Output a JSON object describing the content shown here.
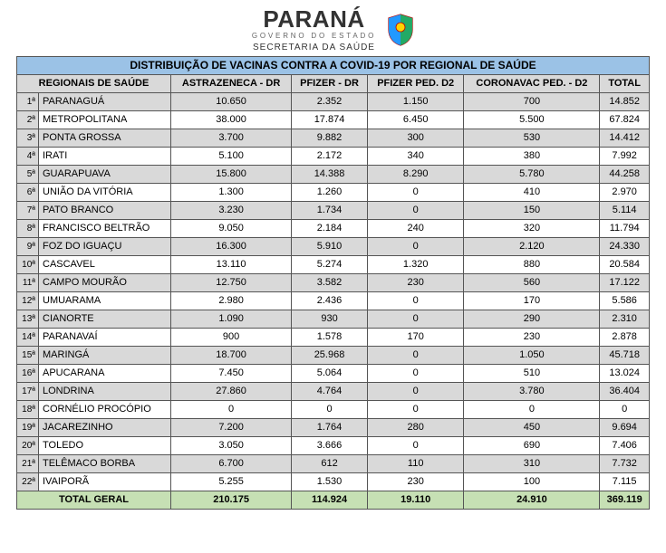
{
  "header": {
    "brand_main": "PARANÁ",
    "brand_sub": "GOVERNO DO ESTADO",
    "brand_sec": "SECRETARIA DA SAÚDE"
  },
  "table": {
    "title": "DISTRIBUIÇÃO DE VACINAS CONTRA A COVID-19 POR REGIONAL DE SAÚDE",
    "columns": [
      "REGIONAIS DE SAÚDE",
      "ASTRAZENECA - DR",
      "PFIZER - DR",
      "PFIZER PED. D2",
      "CORONAVAC PED. - D2",
      "TOTAL"
    ],
    "rows": [
      {
        "idx": "1ª",
        "reg": "PARANAGUÁ",
        "v": [
          "10.650",
          "2.352",
          "1.150",
          "700",
          "14.852"
        ]
      },
      {
        "idx": "2ª",
        "reg": "METROPOLITANA",
        "v": [
          "38.000",
          "17.874",
          "6.450",
          "5.500",
          "67.824"
        ]
      },
      {
        "idx": "3ª",
        "reg": "PONTA GROSSA",
        "v": [
          "3.700",
          "9.882",
          "300",
          "530",
          "14.412"
        ]
      },
      {
        "idx": "4ª",
        "reg": "IRATI",
        "v": [
          "5.100",
          "2.172",
          "340",
          "380",
          "7.992"
        ]
      },
      {
        "idx": "5ª",
        "reg": "GUARAPUAVA",
        "v": [
          "15.800",
          "14.388",
          "8.290",
          "5.780",
          "44.258"
        ]
      },
      {
        "idx": "6ª",
        "reg": "UNIÃO DA VITÓRIA",
        "v": [
          "1.300",
          "1.260",
          "0",
          "410",
          "2.970"
        ]
      },
      {
        "idx": "7ª",
        "reg": "PATO BRANCO",
        "v": [
          "3.230",
          "1.734",
          "0",
          "150",
          "5.114"
        ]
      },
      {
        "idx": "8ª",
        "reg": "FRANCISCO BELTRÃO",
        "v": [
          "9.050",
          "2.184",
          "240",
          "320",
          "11.794"
        ]
      },
      {
        "idx": "9ª",
        "reg": "FOZ DO IGUAÇU",
        "v": [
          "16.300",
          "5.910",
          "0",
          "2.120",
          "24.330"
        ]
      },
      {
        "idx": "10ª",
        "reg": "CASCAVEL",
        "v": [
          "13.110",
          "5.274",
          "1.320",
          "880",
          "20.584"
        ]
      },
      {
        "idx": "11ª",
        "reg": "CAMPO MOURÃO",
        "v": [
          "12.750",
          "3.582",
          "230",
          "560",
          "17.122"
        ]
      },
      {
        "idx": "12ª",
        "reg": "UMUARAMA",
        "v": [
          "2.980",
          "2.436",
          "0",
          "170",
          "5.586"
        ]
      },
      {
        "idx": "13ª",
        "reg": "CIANORTE",
        "v": [
          "1.090",
          "930",
          "0",
          "290",
          "2.310"
        ]
      },
      {
        "idx": "14ª",
        "reg": "PARANAVAÍ",
        "v": [
          "900",
          "1.578",
          "170",
          "230",
          "2.878"
        ]
      },
      {
        "idx": "15ª",
        "reg": "MARINGÁ",
        "v": [
          "18.700",
          "25.968",
          "0",
          "1.050",
          "45.718"
        ]
      },
      {
        "idx": "16ª",
        "reg": "APUCARANA",
        "v": [
          "7.450",
          "5.064",
          "0",
          "510",
          "13.024"
        ]
      },
      {
        "idx": "17ª",
        "reg": "LONDRINA",
        "v": [
          "27.860",
          "4.764",
          "0",
          "3.780",
          "36.404"
        ]
      },
      {
        "idx": "18ª",
        "reg": "CORNÉLIO PROCÓPIO",
        "v": [
          "0",
          "0",
          "0",
          "0",
          "0"
        ]
      },
      {
        "idx": "19ª",
        "reg": "JACAREZINHO",
        "v": [
          "7.200",
          "1.764",
          "280",
          "450",
          "9.694"
        ]
      },
      {
        "idx": "20ª",
        "reg": "TOLEDO",
        "v": [
          "3.050",
          "3.666",
          "0",
          "690",
          "7.406"
        ]
      },
      {
        "idx": "21ª",
        "reg": "TELÊMACO BORBA",
        "v": [
          "6.700",
          "612",
          "110",
          "310",
          "7.732"
        ]
      },
      {
        "idx": "22ª",
        "reg": "IVAIPORÃ",
        "v": [
          "5.255",
          "1.530",
          "230",
          "100",
          "7.115"
        ]
      }
    ],
    "total": {
      "label": "TOTAL GERAL",
      "v": [
        "210.175",
        "114.924",
        "19.110",
        "24.910",
        "369.119"
      ]
    }
  },
  "style": {
    "title_bg": "#9bc2e6",
    "header_bg": "#d9d9d9",
    "stripe_bg": "#d9d9d9",
    "total_bg": "#c6e0b4",
    "border": "#555555",
    "font_size_body": 11,
    "font_size_title": 12
  }
}
